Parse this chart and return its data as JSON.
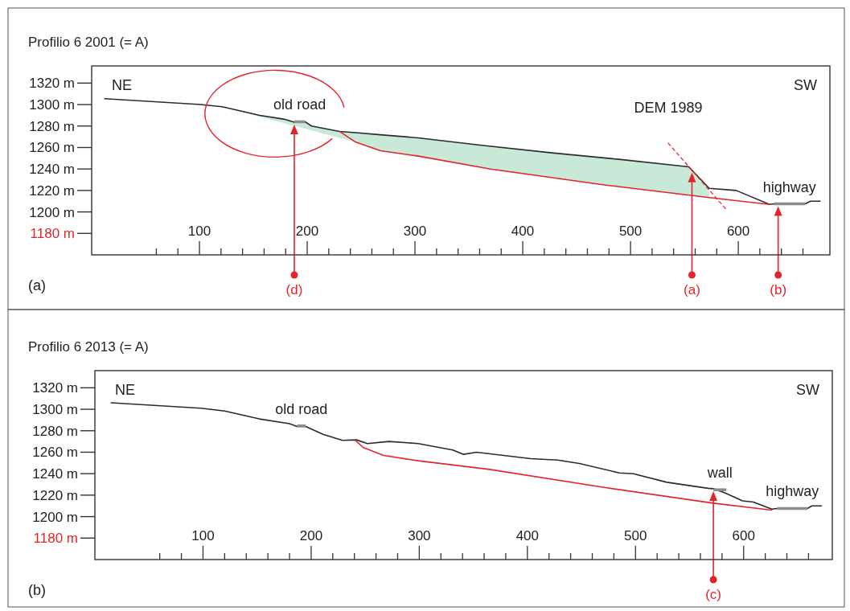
{
  "chart_data": [
    {
      "type": "line",
      "title": "Profilio 6 2001 (= A)",
      "xlim": [
        0,
        685
      ],
      "ylim": [
        1160,
        1336
      ],
      "xticks": [
        {
          "value": 60,
          "label": null
        },
        {
          "value": 80,
          "label": null
        },
        100,
        {
          "value": 120,
          "label": null
        },
        {
          "value": 140,
          "label": null
        },
        {
          "value": 160,
          "label": null
        },
        {
          "value": 180,
          "label": null
        },
        200,
        {
          "value": 220,
          "label": null
        },
        {
          "value": 240,
          "label": null
        },
        {
          "value": 260,
          "label": null
        },
        {
          "value": 280,
          "label": null
        },
        300,
        {
          "value": 320,
          "label": null
        },
        {
          "value": 340,
          "label": null
        },
        {
          "value": 360,
          "label": null
        },
        {
          "value": 380,
          "label": null
        },
        400,
        {
          "value": 420,
          "label": null
        },
        {
          "value": 440,
          "label": null
        },
        {
          "value": 460,
          "label": null
        },
        {
          "value": 480,
          "label": null
        },
        500,
        {
          "value": 520,
          "label": null
        },
        {
          "value": 540,
          "label": null
        },
        {
          "value": 560,
          "label": null
        },
        {
          "value": 580,
          "label": null
        },
        600,
        {
          "value": 620,
          "label": null
        },
        {
          "value": 640,
          "label": null
        },
        {
          "value": 660,
          "label": null
        }
      ],
      "yticks": [
        {
          "value": 1180,
          "label": "1180 m"
        },
        {
          "value": 1200,
          "label": "1200 m"
        },
        {
          "value": 1220,
          "label": "1220 m"
        },
        {
          "value": 1240,
          "label": "1240 m"
        },
        {
          "value": 1260,
          "label": "1260 m"
        },
        {
          "value": 1280,
          "label": "1280 m"
        },
        {
          "value": 1300,
          "label": "1300 m"
        },
        {
          "value": 1320,
          "label": "1320 m"
        }
      ],
      "series": [
        {
          "type": "line",
          "color": "#2b2b2b",
          "x": [
            12,
            52,
            101,
            121,
            156,
            178,
            188,
            198,
            204,
            230,
            245,
            268,
            303,
            362,
            427,
            489,
            554,
            573,
            598,
            629,
            634,
            662,
            667,
            676
          ],
          "values": [
            1305.5,
            1303,
            1300,
            1298,
            1290,
            1286.5,
            1283.5,
            1284,
            1280,
            1275,
            1273.8,
            1271.9,
            1269,
            1262,
            1255,
            1249,
            1242,
            1222,
            1220,
            1207,
            1207.5,
            1207.5,
            1210,
            1210
          ],
          "lower": [
            null,
            null,
            null,
            1298,
            1288.7,
            1282.8,
            1280.2,
            1277.5,
            1275.9,
            1269,
            1265,
            1257,
            1252,
            1241,
            1232,
            1223.5,
            1215.5,
            1213,
            null,
            null,
            null,
            null,
            null,
            null
          ],
          "upper": [
            null,
            null,
            null,
            1298,
            1290,
            1286.5,
            1283.5,
            1284,
            1280,
            1275,
            1273.8,
            1271.9,
            1269,
            1262,
            1255,
            1249,
            1242,
            1222,
            null,
            null,
            null,
            null,
            null,
            null
          ]
        },
        {
          "type": "line",
          "color": "#e3242b",
          "x": [
            230,
            245,
            268,
            303,
            370,
            477,
            576,
            629
          ],
          "values": [
            1275,
            1265,
            1257,
            1252,
            1240,
            1225,
            1213,
            1207
          ]
        },
        {
          "type": "line",
          "name": "DEM 1989",
          "color": "#e3242b",
          "line_style": "dashed",
          "x": [
            535,
            590
          ],
          "values": [
            1264,
            1201
          ]
        },
        {
          "type": "line",
          "name": "old road",
          "color": "#8c8c8c",
          "x": [
            188,
            198
          ],
          "values": [
            1284,
            1284
          ]
        },
        {
          "type": "line",
          "name": "highway",
          "color": "#8c8c8c",
          "x": [
            633,
            662
          ],
          "values": [
            1207.5,
            1207.5
          ]
        }
      ],
      "ref_lines": [
        {
          "axis": "x",
          "value": 188,
          "label": "(d)",
          "color": "#e3242b"
        },
        {
          "axis": "x",
          "value": 557,
          "label": "(a)",
          "color": "#e3242b"
        },
        {
          "axis": "x",
          "value": 637,
          "label": "(b)",
          "color": "#e3242b"
        }
      ],
      "annotations": [
        "NE",
        "SW",
        "(a)"
      ]
    },
    {
      "type": "line",
      "title": "Profilio 6 2013 (= A)",
      "xlim": [
        0,
        682
      ],
      "ylim": [
        1160,
        1336
      ],
      "xticks": [
        {
          "value": 60,
          "label": null
        },
        {
          "value": 80,
          "label": null
        },
        100,
        {
          "value": 120,
          "label": null
        },
        {
          "value": 140,
          "label": null
        },
        {
          "value": 160,
          "label": null
        },
        {
          "value": 180,
          "label": null
        },
        200,
        {
          "value": 220,
          "label": null
        },
        {
          "value": 240,
          "label": null
        },
        {
          "value": 260,
          "label": null
        },
        {
          "value": 280,
          "label": null
        },
        300,
        {
          "value": 320,
          "label": null
        },
        {
          "value": 340,
          "label": null
        },
        {
          "value": 360,
          "label": null
        },
        {
          "value": 380,
          "label": null
        },
        400,
        {
          "value": 420,
          "label": null
        },
        {
          "value": 440,
          "label": null
        },
        {
          "value": 460,
          "label": null
        },
        {
          "value": 480,
          "label": null
        },
        500,
        {
          "value": 520,
          "label": null
        },
        {
          "value": 540,
          "label": null
        },
        {
          "value": 560,
          "label": null
        },
        {
          "value": 580,
          "label": null
        },
        600,
        {
          "value": 620,
          "label": null
        },
        {
          "value": 640,
          "label": null
        },
        {
          "value": 660,
          "label": null
        }
      ],
      "yticks": [
        {
          "value": 1180,
          "label": "1180 m"
        },
        {
          "value": 1200,
          "label": "1200 m"
        },
        {
          "value": 1220,
          "label": "1220 m"
        },
        {
          "value": 1240,
          "label": "1240 m"
        },
        {
          "value": 1260,
          "label": "1260 m"
        },
        {
          "value": 1280,
          "label": "1280 m"
        },
        {
          "value": 1300,
          "label": "1300 m"
        },
        {
          "value": 1320,
          "label": "1320 m"
        }
      ],
      "series": [
        {
          "type": "line",
          "color": "#2b2b2b",
          "x": [
            15,
            58,
            98,
            120,
            152,
            180,
            187,
            195,
            211,
            229,
            242,
            252,
            272,
            299,
            331,
            341,
            353,
            403,
            428,
            448,
            485,
            498,
            529,
            567,
            572,
            583,
            599,
            609,
            626,
            631,
            659,
            663,
            672
          ],
          "values": [
            1306,
            1303.4,
            1301,
            1298.4,
            1291,
            1286.6,
            1284,
            1284,
            1276.6,
            1271,
            1271.5,
            1268,
            1270,
            1268,
            1262,
            1258,
            1260,
            1254,
            1252.7,
            1249.5,
            1240.7,
            1240,
            1232,
            1226.4,
            1226,
            1222,
            1214.7,
            1213.6,
            1207,
            1207.6,
            1207.6,
            1210,
            1210
          ]
        },
        {
          "type": "line",
          "color": "#e3242b",
          "x": [
            241,
            248,
            267,
            299,
            365,
            472,
            572,
            626
          ],
          "values": [
            1271,
            1264.5,
            1257,
            1252,
            1244,
            1227,
            1212.5,
            1206
          ]
        },
        {
          "type": "line",
          "name": "old road",
          "color": "#8c8c8c",
          "x": [
            187,
            195
          ],
          "values": [
            1284.5,
            1284.5
          ]
        },
        {
          "type": "line",
          "name": "wall",
          "color": "#8c8c8c",
          "x": [
            572,
            584
          ],
          "values": [
            1225,
            1225
          ]
        },
        {
          "type": "line",
          "name": "highway",
          "color": "#8c8c8c",
          "x": [
            631,
            659
          ],
          "values": [
            1207.6,
            1207.6
          ]
        }
      ],
      "ref_lines": [
        {
          "axis": "x",
          "value": 572,
          "label": "(c)",
          "color": "#e3242b"
        }
      ],
      "annotations": [
        "NE",
        "SW",
        "(b)"
      ]
    }
  ]
}
